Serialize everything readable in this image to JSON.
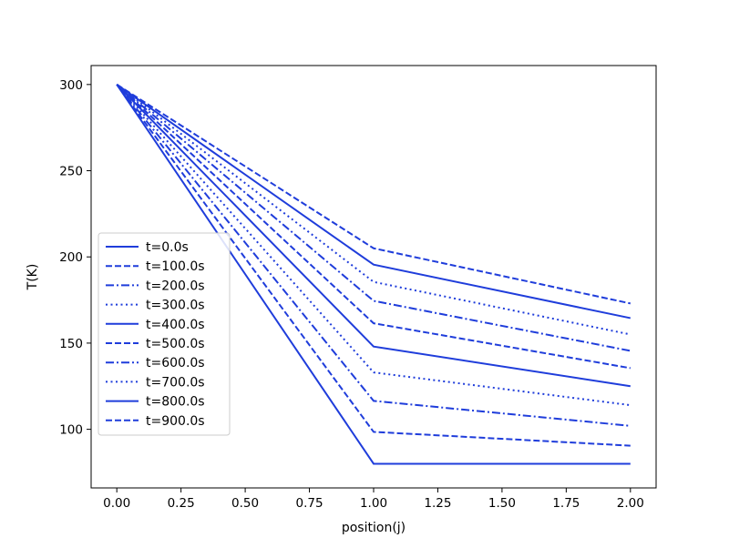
{
  "chart_data": {
    "type": "line",
    "title": "",
    "xlabel": "position(j)",
    "ylabel": "T(K)",
    "xlim": [
      -0.1,
      2.1
    ],
    "ylim": [
      66,
      311
    ],
    "x_ticks": [
      "0.00",
      "0.25",
      "0.50",
      "0.75",
      "1.00",
      "1.25",
      "1.50",
      "1.75",
      "2.00"
    ],
    "x_tick_values": [
      0,
      0.25,
      0.5,
      0.75,
      1,
      1.25,
      1.5,
      1.75,
      2
    ],
    "y_ticks": [
      "100",
      "150",
      "200",
      "250",
      "300"
    ],
    "y_tick_values": [
      100,
      150,
      200,
      250,
      300
    ],
    "grid": false,
    "legend_position": "lower-left",
    "x": [
      0,
      1,
      2
    ],
    "series": [
      {
        "name": "t=0.0s",
        "style": "solid",
        "values": [
          300,
          80,
          80
        ]
      },
      {
        "name": "t=100.0s",
        "style": "dashed",
        "values": [
          300,
          98.5,
          90.5
        ]
      },
      {
        "name": "t=200.0s",
        "style": "dashdot",
        "values": [
          300,
          116.5,
          102
        ]
      },
      {
        "name": "t=300.0s",
        "style": "dotted",
        "values": [
          300,
          133,
          114
        ]
      },
      {
        "name": "t=400.0s",
        "style": "solid",
        "values": [
          300,
          148,
          125
        ]
      },
      {
        "name": "t=500.0s",
        "style": "dashed",
        "values": [
          300,
          161.5,
          135.5
        ]
      },
      {
        "name": "t=600.0s",
        "style": "dashdot",
        "values": [
          300,
          174.5,
          145.5
        ]
      },
      {
        "name": "t=700.0s",
        "style": "dotted",
        "values": [
          300,
          185.5,
          155
        ]
      },
      {
        "name": "t=800.0s",
        "style": "solid",
        "values": [
          300,
          195.5,
          164.5
        ]
      },
      {
        "name": "t=900.0s",
        "style": "dashed",
        "values": [
          300,
          205,
          173
        ]
      }
    ],
    "colors": {
      "line": "#1f3ddb",
      "axes": "#000000",
      "legend_border": "#cccccc",
      "background": "#ffffff"
    }
  }
}
